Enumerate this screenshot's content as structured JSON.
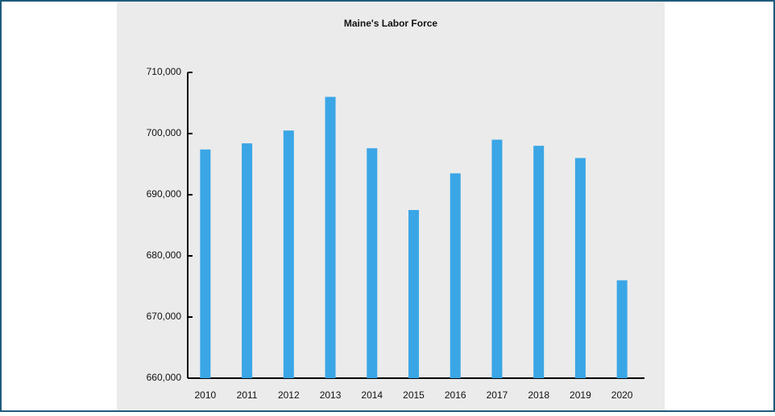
{
  "chart_data": {
    "type": "bar",
    "title": "Maine's Labor Force",
    "categories": [
      "2010",
      "2011",
      "2012",
      "2013",
      "2014",
      "2015",
      "2016",
      "2017",
      "2018",
      "2019",
      "2020"
    ],
    "values": [
      697400,
      698400,
      700500,
      706000,
      697600,
      687500,
      693500,
      699000,
      698000,
      696000,
      676000
    ],
    "color": "#3aa6e6",
    "ylim": [
      660000,
      710000
    ],
    "yticks": [
      {
        "value": 660000,
        "label": "660,000"
      },
      {
        "value": 670000,
        "label": "670,000"
      },
      {
        "value": 680000,
        "label": "680,000"
      },
      {
        "value": 690000,
        "label": "690,000"
      },
      {
        "value": 700000,
        "label": "700,000"
      },
      {
        "value": 710000,
        "label": "710,000"
      }
    ],
    "grid": false
  }
}
